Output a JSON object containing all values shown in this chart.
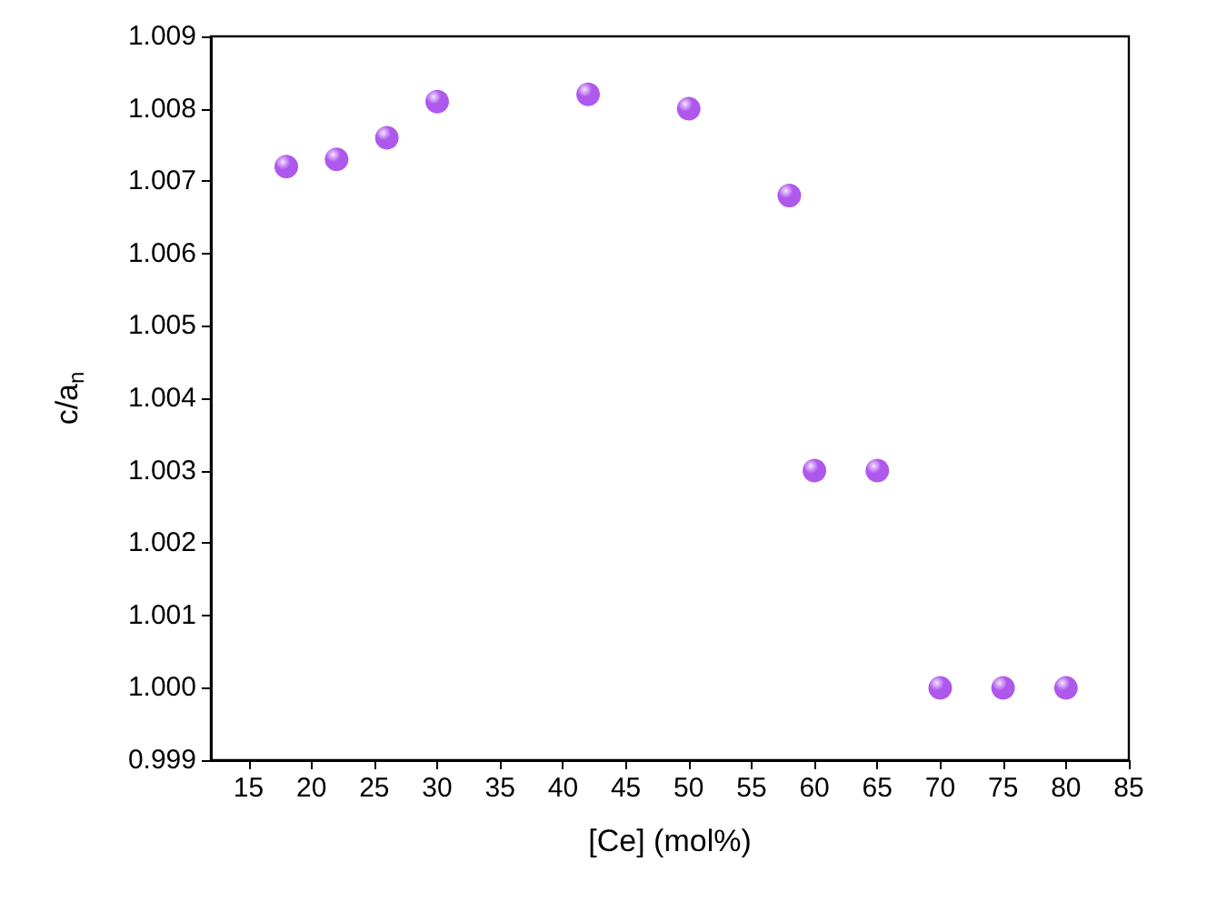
{
  "chart_data": {
    "type": "scatter",
    "xlabel": "[Ce] (mol%)",
    "ylabel": "c/a$_{n}$",
    "x": [
      18,
      22,
      26,
      30,
      42,
      50,
      58,
      60,
      65,
      70,
      75,
      80
    ],
    "series": [
      {
        "color": "#9a2ee8",
        "values": [
          1.0072,
          1.0073,
          1.0076,
          1.0081,
          1.0082,
          1.008,
          1.0068,
          1.003,
          1.003,
          1.0,
          1.0,
          1.0
        ]
      }
    ],
    "xlim": [
      12,
      85
    ],
    "xticks": [
      15,
      20,
      25,
      30,
      35,
      40,
      45,
      50,
      55,
      60,
      65,
      70,
      75,
      80,
      85
    ],
    "ylim": [
      0.999,
      1.009
    ],
    "yticks": [
      {
        "value": 0.999,
        "label": "0.999"
      },
      {
        "value": 1.0,
        "label": "1.000"
      },
      {
        "value": 1.001,
        "label": "1.001"
      },
      {
        "value": 1.002,
        "label": "1.002"
      },
      {
        "value": 1.003,
        "label": "1.003"
      },
      {
        "value": 1.004,
        "label": "1.004"
      },
      {
        "value": 1.005,
        "label": "1.005"
      },
      {
        "value": 1.006,
        "label": "1.006"
      },
      {
        "value": 1.007,
        "label": "1.007"
      },
      {
        "value": 1.008,
        "label": "1.008"
      },
      {
        "value": 1.009,
        "label": "1.009"
      }
    ],
    "marker": "circle",
    "grid": false
  }
}
